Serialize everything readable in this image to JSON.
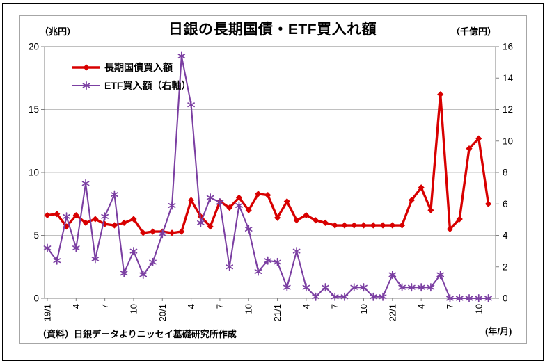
{
  "window": {
    "background": "#FFFFFF",
    "outer_border_color": "#000000",
    "inner_border_color": "#A6A6A6"
  },
  "header": {
    "title": "日銀の長期国債・ETF買入れ額",
    "left_unit": "（兆円）",
    "right_unit": "（千億円）"
  },
  "footer": {
    "source_note": "（資料）日銀データよりニッセイ基礎研究所作成",
    "x_unit_label": "(年/月)"
  },
  "legend": {
    "items": [
      {
        "label": "長期国債買入額",
        "color": "#D80000",
        "marker": "diamond"
      },
      {
        "label": "ETF買入額（右軸）",
        "color": "#7B3FA2",
        "marker": "asterisk"
      }
    ]
  },
  "chart_data": {
    "type": "line",
    "title": "日銀の長期国債・ETF買入れ額",
    "grid": "horizontal-on",
    "legend_position": "top-left-inside",
    "colors": {
      "jgb_series": "#D80000",
      "etf_series": "#7B3FA2",
      "gridline": "#C0C0C0",
      "axis": "#808080"
    },
    "categories": [
      "19/1",
      "19/2",
      "19/3",
      "19/4",
      "19/5",
      "19/6",
      "19/7",
      "19/8",
      "19/9",
      "19/10",
      "19/11",
      "19/12",
      "20/1",
      "20/2",
      "20/3",
      "20/4",
      "20/5",
      "20/6",
      "20/7",
      "20/8",
      "20/9",
      "20/10",
      "20/11",
      "20/12",
      "21/1",
      "21/2",
      "21/3",
      "21/4",
      "21/5",
      "21/6",
      "21/7",
      "21/8",
      "21/9",
      "21/10",
      "21/11",
      "21/12",
      "22/1",
      "22/2",
      "22/3",
      "22/4",
      "22/5",
      "22/6",
      "22/7",
      "22/8",
      "22/9",
      "22/10",
      "22/11"
    ],
    "x_tick_positions": [
      0,
      3,
      6,
      9,
      12,
      15,
      18,
      21,
      24,
      27,
      30,
      33,
      36,
      39,
      42,
      45
    ],
    "x_tick_labels": [
      "19/1",
      "4",
      "7",
      "10",
      "20/1",
      "4",
      "7",
      "10",
      "21/1",
      "4",
      "7",
      "10",
      "22/1",
      "4",
      "7",
      "10"
    ],
    "x_axis_unit": "(年/月)",
    "left_axis": {
      "unit": "（兆円）",
      "min": 0,
      "max": 20,
      "tick_step": 5,
      "ticks": [
        0,
        5,
        10,
        15,
        20
      ]
    },
    "right_axis": {
      "unit": "（千億円）",
      "min": 0,
      "max": 16,
      "tick_step": 2,
      "ticks": [
        0,
        2,
        4,
        6,
        8,
        10,
        12,
        14,
        16
      ]
    },
    "gridlines_at_left_values": [
      5,
      10,
      15
    ],
    "series": [
      {
        "name": "長期国債買入額",
        "axis": "left",
        "color": "#D80000",
        "marker": "diamond",
        "values": [
          6.6,
          6.7,
          5.7,
          6.6,
          6.0,
          6.3,
          5.9,
          5.8,
          6.0,
          6.3,
          5.2,
          5.3,
          5.3,
          5.2,
          5.3,
          7.8,
          6.5,
          5.7,
          7.7,
          7.2,
          8.0,
          7.0,
          8.3,
          8.2,
          6.4,
          7.7,
          6.2,
          6.6,
          6.2,
          6.0,
          5.8,
          5.8,
          5.8,
          5.8,
          5.8,
          5.8,
          5.8,
          5.8,
          7.8,
          8.8,
          7.0,
          16.2,
          5.5,
          6.3,
          11.9,
          12.7,
          7.5
        ]
      },
      {
        "name": "ETF買入額（右軸）",
        "axis": "right",
        "color": "#7B3FA2",
        "marker": "asterisk",
        "values": [
          3.2,
          2.4,
          5.2,
          3.2,
          7.3,
          2.5,
          5.2,
          6.6,
          1.6,
          3.0,
          1.5,
          2.3,
          4.1,
          5.9,
          15.4,
          12.3,
          4.8,
          6.4,
          6.1,
          2.0,
          5.9,
          4.4,
          1.7,
          2.4,
          2.3,
          0.7,
          3.0,
          0.7,
          0.1,
          0.7,
          0.1,
          0.1,
          0.7,
          0.7,
          0.1,
          0.1,
          1.5,
          0.7,
          0.7,
          0.7,
          0.7,
          1.5,
          0.0,
          0.0,
          0.0,
          0.0,
          0.0
        ]
      }
    ]
  }
}
